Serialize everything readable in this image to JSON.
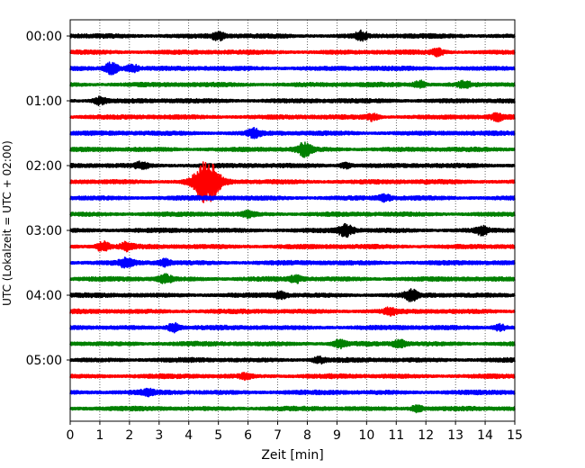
{
  "chart_data": {
    "type": "line",
    "title": "",
    "xlabel": "Zeit  [min]",
    "ylabel": "UTC (Lokalzeit = UTC + 02:00)",
    "x_ticks": [
      "0",
      "1",
      "2",
      "3",
      "4",
      "5",
      "6",
      "7",
      "8",
      "9",
      "10",
      "11",
      "12",
      "13",
      "14",
      "15"
    ],
    "xlim": [
      0,
      15
    ],
    "y_ticks": [
      "00:00",
      "01:00",
      "02:00",
      "03:00",
      "04:00",
      "05:00"
    ],
    "trace_interval_min": 15,
    "trace_count": 24,
    "trace_colors": [
      "#000000",
      "#ff0000",
      "#0000ff",
      "#008000"
    ],
    "grid": {
      "vertical": true,
      "style": "dotted"
    },
    "traces": [
      {
        "start": "00:00",
        "color": "#000000",
        "events": [
          {
            "x": 5.0,
            "amp": 0.6
          },
          {
            "x": 9.8,
            "amp": 0.7
          }
        ]
      },
      {
        "start": "00:15",
        "color": "#ff0000",
        "events": [
          {
            "x": 12.4,
            "amp": 0.5
          }
        ]
      },
      {
        "start": "00:30",
        "color": "#0000ff",
        "events": [
          {
            "x": 1.4,
            "amp": 1.0
          },
          {
            "x": 2.1,
            "amp": 0.6
          }
        ]
      },
      {
        "start": "00:45",
        "color": "#008000",
        "events": [
          {
            "x": 11.8,
            "amp": 0.6
          },
          {
            "x": 13.3,
            "amp": 0.5
          }
        ]
      },
      {
        "start": "01:00",
        "color": "#000000",
        "events": [
          {
            "x": 1.0,
            "amp": 0.6
          }
        ]
      },
      {
        "start": "01:15",
        "color": "#ff0000",
        "events": [
          {
            "x": 10.2,
            "amp": 0.5
          },
          {
            "x": 14.4,
            "amp": 0.5
          }
        ]
      },
      {
        "start": "01:30",
        "color": "#0000ff",
        "events": [
          {
            "x": 6.2,
            "amp": 0.6
          }
        ]
      },
      {
        "start": "01:45",
        "color": "#008000",
        "events": [
          {
            "x": 7.9,
            "amp": 1.0
          }
        ]
      },
      {
        "start": "02:00",
        "color": "#000000",
        "events": [
          {
            "x": 2.4,
            "amp": 0.5
          },
          {
            "x": 9.3,
            "amp": 0.4
          }
        ]
      },
      {
        "start": "02:15",
        "color": "#ff0000",
        "events": [
          {
            "x": 4.6,
            "amp": 3.5
          }
        ]
      },
      {
        "start": "02:30",
        "color": "#0000ff",
        "events": [
          {
            "x": 10.6,
            "amp": 0.5
          }
        ]
      },
      {
        "start": "02:45",
        "color": "#008000",
        "events": [
          {
            "x": 6.0,
            "amp": 0.4
          }
        ]
      },
      {
        "start": "03:00",
        "color": "#000000",
        "events": [
          {
            "x": 9.3,
            "amp": 1.0
          },
          {
            "x": 13.9,
            "amp": 0.6
          }
        ]
      },
      {
        "start": "03:15",
        "color": "#ff0000",
        "events": [
          {
            "x": 1.1,
            "amp": 0.8
          },
          {
            "x": 1.9,
            "amp": 0.6
          }
        ]
      },
      {
        "start": "03:30",
        "color": "#0000ff",
        "events": [
          {
            "x": 1.9,
            "amp": 0.7
          },
          {
            "x": 3.2,
            "amp": 0.5
          }
        ]
      },
      {
        "start": "03:45",
        "color": "#008000",
        "events": [
          {
            "x": 3.2,
            "amp": 0.7
          },
          {
            "x": 7.6,
            "amp": 0.5
          }
        ]
      },
      {
        "start": "04:00",
        "color": "#000000",
        "events": [
          {
            "x": 7.1,
            "amp": 0.5
          },
          {
            "x": 11.5,
            "amp": 0.8
          }
        ]
      },
      {
        "start": "04:15",
        "color": "#ff0000",
        "events": [
          {
            "x": 10.8,
            "amp": 0.5
          }
        ]
      },
      {
        "start": "04:30",
        "color": "#0000ff",
        "events": [
          {
            "x": 3.5,
            "amp": 0.7
          },
          {
            "x": 14.5,
            "amp": 0.5
          }
        ]
      },
      {
        "start": "04:45",
        "color": "#008000",
        "events": [
          {
            "x": 9.1,
            "amp": 0.6
          },
          {
            "x": 11.1,
            "amp": 0.6
          }
        ]
      },
      {
        "start": "05:00",
        "color": "#000000",
        "events": [
          {
            "x": 8.4,
            "amp": 0.5
          }
        ]
      },
      {
        "start": "05:15",
        "color": "#ff0000",
        "events": [
          {
            "x": 5.9,
            "amp": 0.4
          }
        ]
      },
      {
        "start": "05:30",
        "color": "#0000ff",
        "events": [
          {
            "x": 2.6,
            "amp": 0.4
          }
        ]
      },
      {
        "start": "05:45",
        "color": "#008000",
        "events": [
          {
            "x": 11.7,
            "amp": 0.5
          }
        ]
      }
    ]
  }
}
